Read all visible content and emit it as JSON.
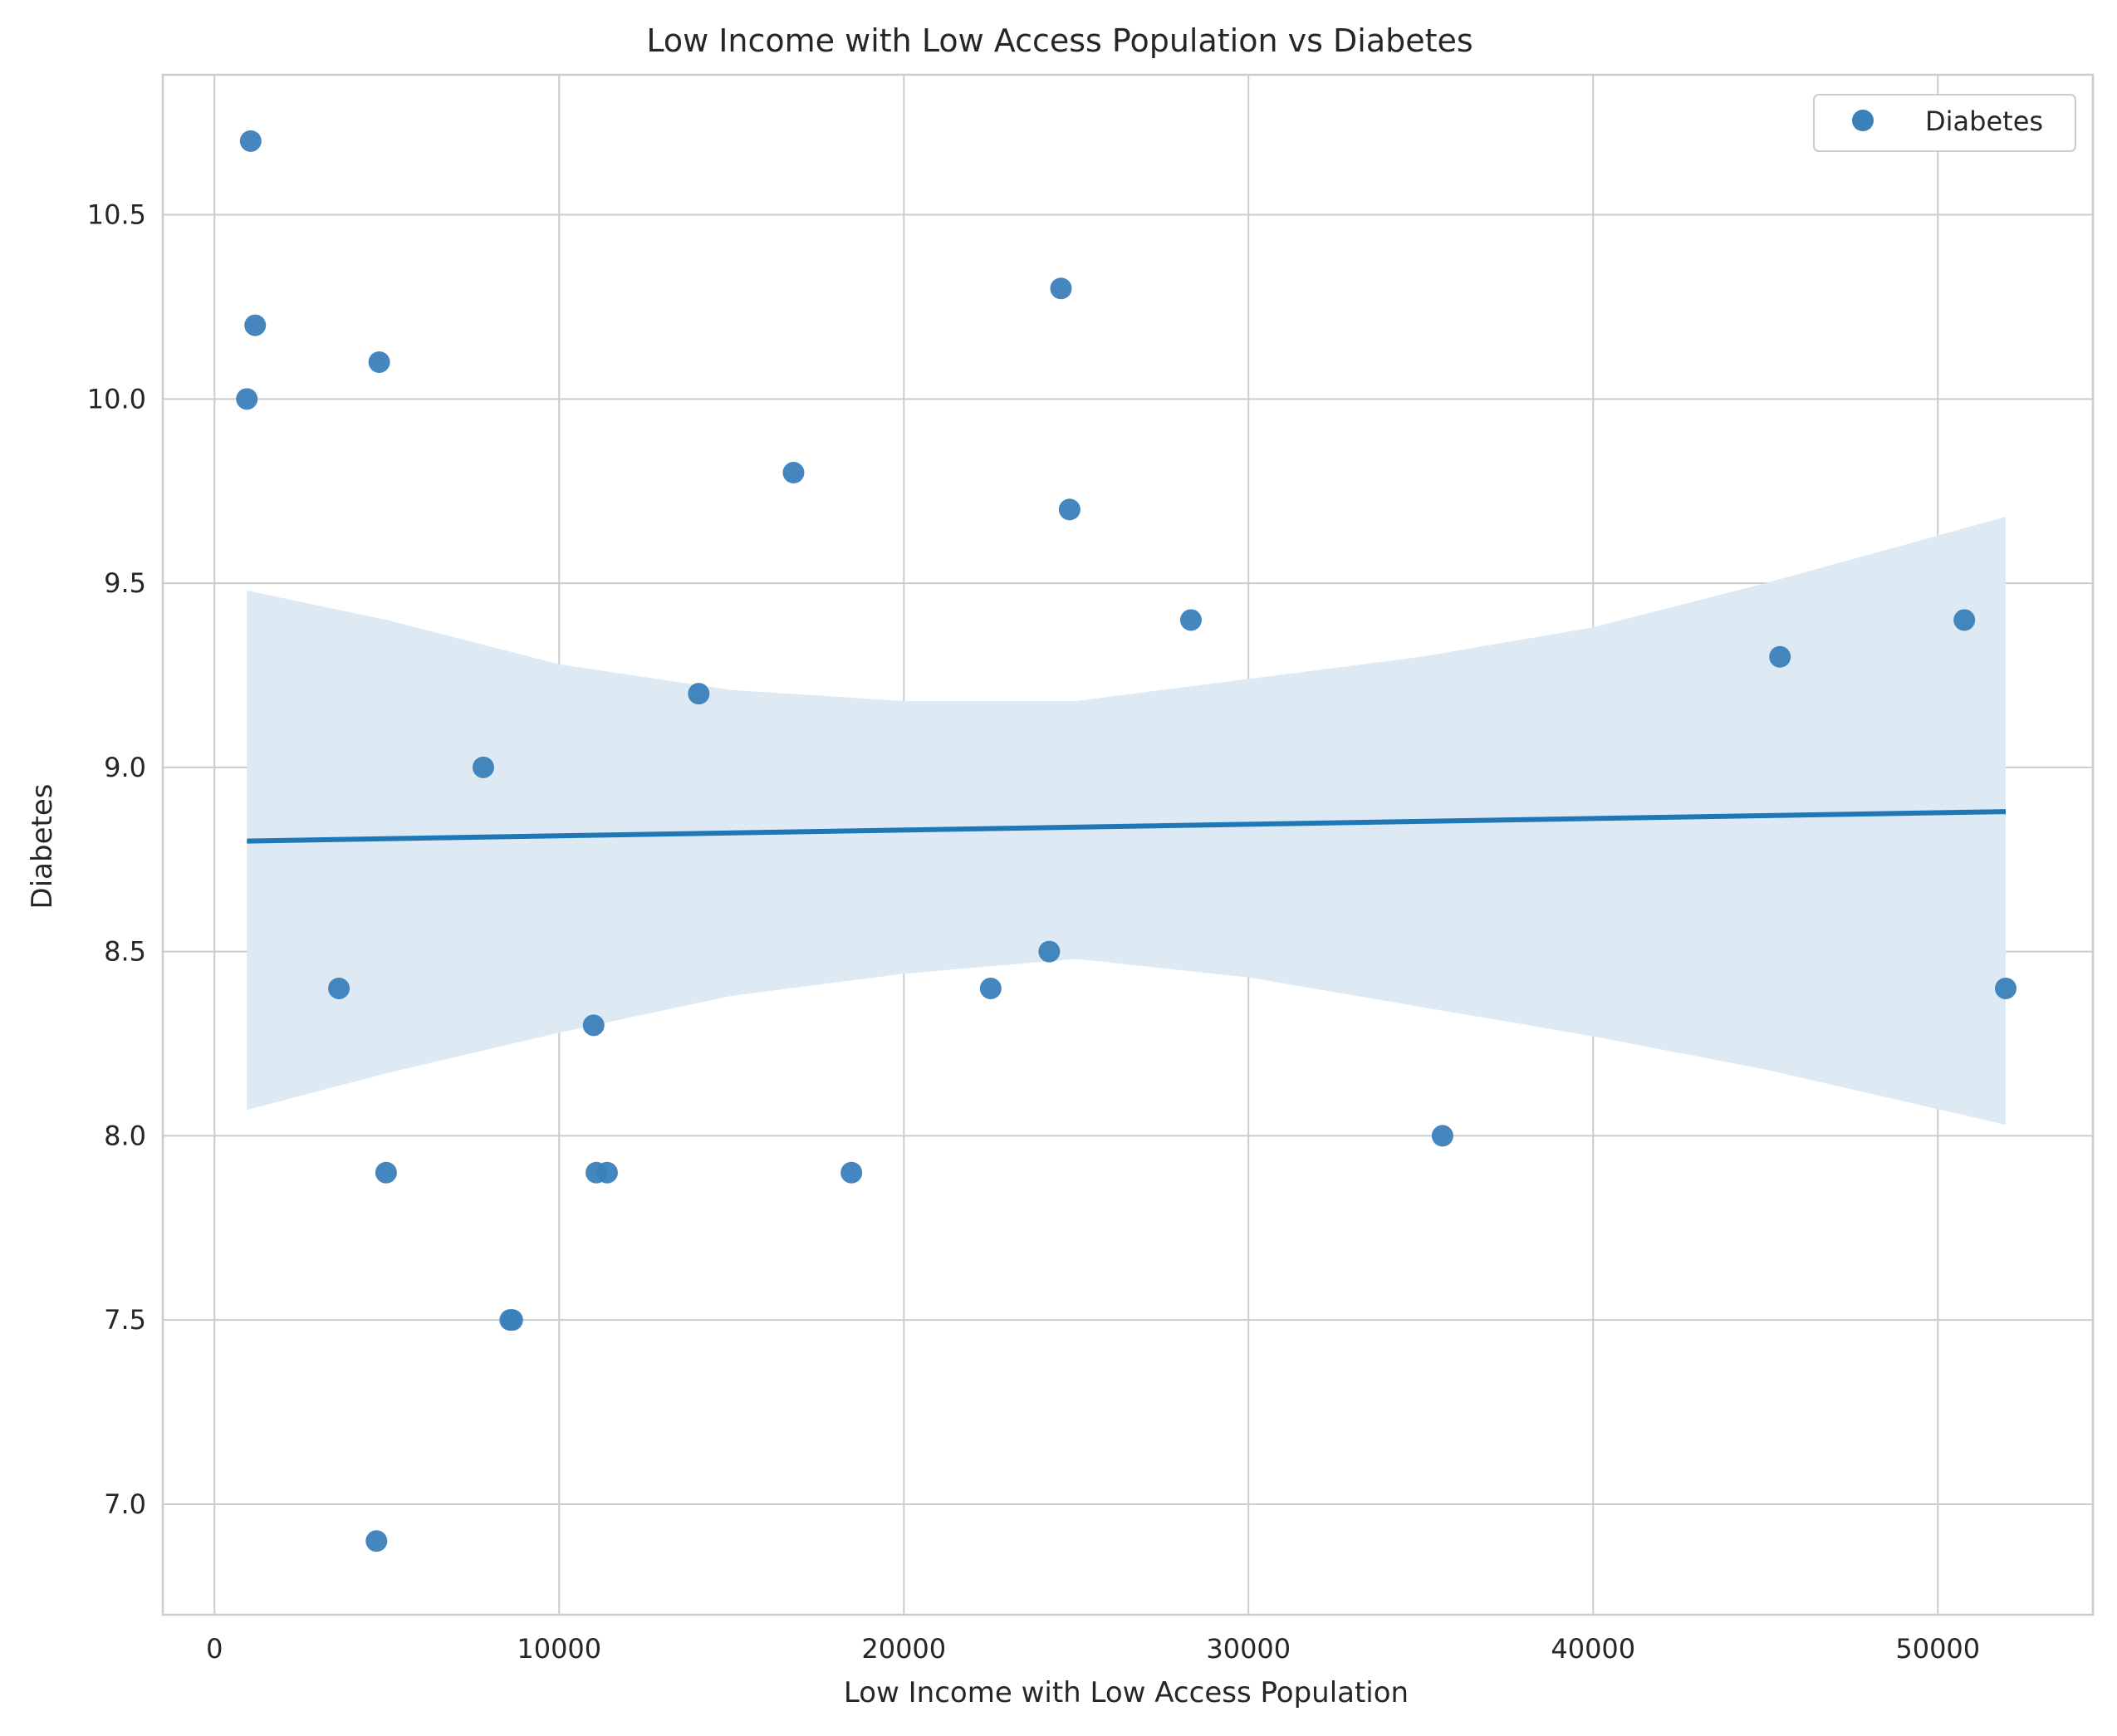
{
  "chart_data": {
    "type": "scatter",
    "title": "Low Income with Low  Access Population vs Diabetes",
    "xlabel": "Low Income with Low  Access Population",
    "ylabel": "Diabetes",
    "xlim": [
      -1500,
      54500
    ],
    "ylim": [
      6.7,
      10.88
    ],
    "xticks": [
      0,
      10000,
      20000,
      30000,
      40000,
      50000
    ],
    "xtick_labels": [
      "0",
      "10000",
      "20000",
      "30000",
      "40000",
      "50000"
    ],
    "yticks": [
      7.0,
      7.5,
      8.0,
      8.5,
      9.0,
      9.5,
      10.0,
      10.5
    ],
    "ytick_labels": [
      "7.0",
      "7.5",
      "8.0",
      "8.5",
      "9.0",
      "9.5",
      "10.0",
      "10.5"
    ],
    "grid": true,
    "legend": {
      "position": "top-right",
      "entries": [
        "Diabetes"
      ]
    },
    "colors": {
      "points": "#3a80b9",
      "line": "#1f77b4",
      "band": "#dde9f3",
      "grid": "#cccccc",
      "spine": "#cccccc"
    },
    "series": [
      {
        "name": "Diabetes",
        "points": [
          {
            "x": 1050,
            "y": 10.7
          },
          {
            "x": 1180,
            "y": 10.2
          },
          {
            "x": 940,
            "y": 10.0
          },
          {
            "x": 4780,
            "y": 10.1
          },
          {
            "x": 24560,
            "y": 10.3
          },
          {
            "x": 16800,
            "y": 9.8
          },
          {
            "x": 24810,
            "y": 9.7
          },
          {
            "x": 28330,
            "y": 9.4
          },
          {
            "x": 50770,
            "y": 9.4
          },
          {
            "x": 45420,
            "y": 9.3
          },
          {
            "x": 14050,
            "y": 9.2
          },
          {
            "x": 7800,
            "y": 9.0
          },
          {
            "x": 24220,
            "y": 8.5
          },
          {
            "x": 3610,
            "y": 8.4
          },
          {
            "x": 22520,
            "y": 8.4
          },
          {
            "x": 51970,
            "y": 8.4
          },
          {
            "x": 11000,
            "y": 8.3
          },
          {
            "x": 35630,
            "y": 8.0
          },
          {
            "x": 4980,
            "y": 7.9
          },
          {
            "x": 11080,
            "y": 7.9
          },
          {
            "x": 11390,
            "y": 7.9
          },
          {
            "x": 18480,
            "y": 7.9
          },
          {
            "x": 8580,
            "y": 7.5
          },
          {
            "x": 8640,
            "y": 7.5
          },
          {
            "x": 4700,
            "y": 6.9
          }
        ]
      }
    ],
    "regression": {
      "x": [
        940,
        51970
      ],
      "y": [
        8.8,
        8.88
      ]
    },
    "confidence_band": {
      "x": [
        940,
        5000,
        10000,
        15000,
        20000,
        25000,
        30000,
        35000,
        40000,
        45000,
        51970
      ],
      "upper": [
        9.48,
        9.4,
        9.28,
        9.21,
        9.18,
        9.18,
        9.24,
        9.3,
        9.38,
        9.5,
        9.68
      ],
      "lower": [
        8.07,
        8.17,
        8.28,
        8.38,
        8.44,
        8.48,
        8.43,
        8.35,
        8.27,
        8.18,
        8.03
      ]
    }
  }
}
